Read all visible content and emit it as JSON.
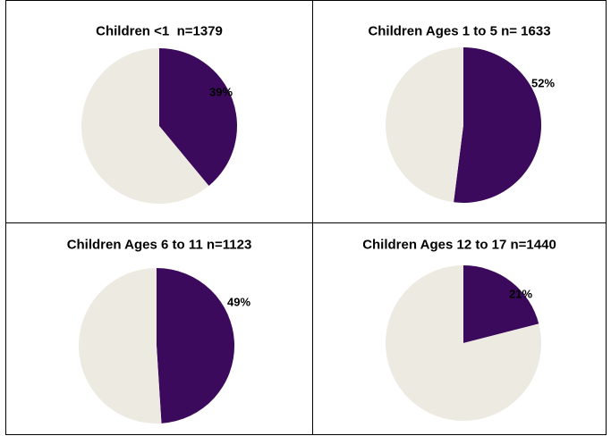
{
  "colors": {
    "highlight": "#3c0a5c",
    "remainder": "#edeae1",
    "border": "#000000",
    "background": "#ffffff"
  },
  "chart_data": [
    {
      "type": "pie",
      "title": "Children <1  n=1379",
      "values": [
        39,
        61
      ],
      "value_label": "39%",
      "start": "12 o'clock, clockwise"
    },
    {
      "type": "pie",
      "title": "Children Ages 1 to 5 n= 1633",
      "values": [
        52,
        48
      ],
      "value_label": "52%",
      "start": "12 o'clock, clockwise"
    },
    {
      "type": "pie",
      "title": "Children Ages 6 to 11 n=1123",
      "values": [
        49,
        51
      ],
      "value_label": "49%",
      "start": "12 o'clock, clockwise"
    },
    {
      "type": "pie",
      "title": "Children Ages 12 to 17 n=1440",
      "values": [
        21,
        79
      ],
      "value_label": "21%",
      "start": "12 o'clock, clockwise"
    }
  ]
}
